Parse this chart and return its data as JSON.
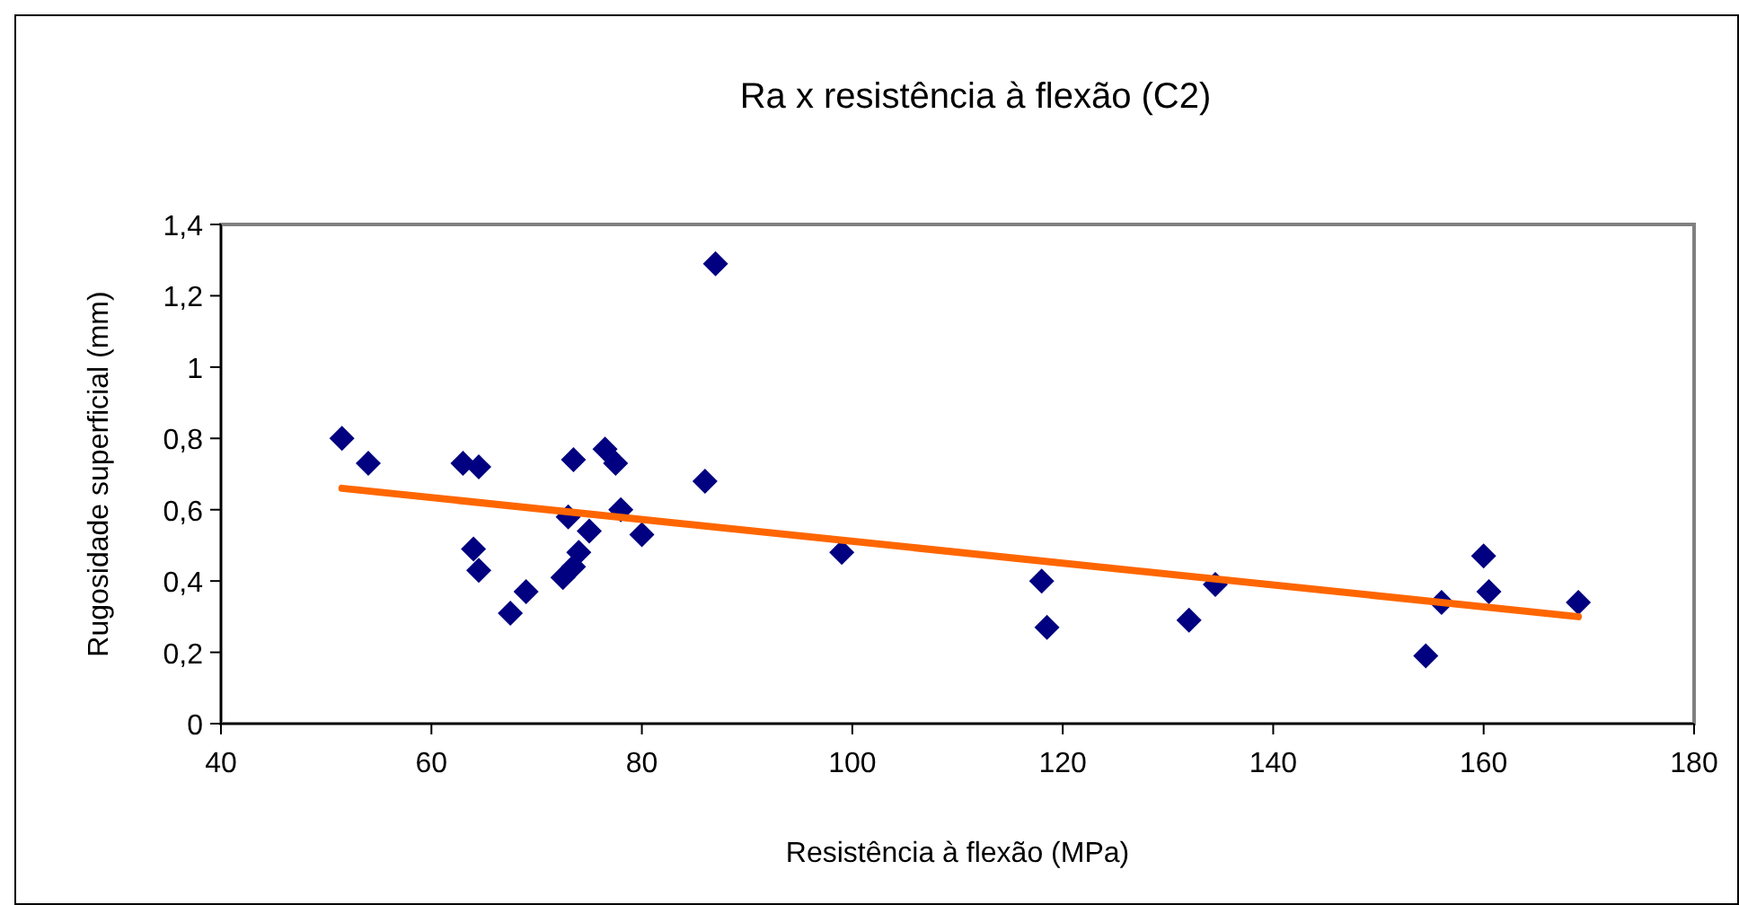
{
  "chart_data": {
    "type": "scatter",
    "title": "Ra x resistência à flexão (C2)",
    "xlabel": "Resistência à flexão (MPa)",
    "ylabel": "Rugosidade superficial (mm)",
    "xlim": [
      40,
      180
    ],
    "xticks": [
      40,
      60,
      80,
      100,
      120,
      140,
      160,
      180
    ],
    "ylim": [
      0,
      1.4
    ],
    "yticks": [
      {
        "value": 0,
        "label": "0"
      },
      {
        "value": 0.2,
        "label": "0,2"
      },
      {
        "value": 0.4,
        "label": "0,4"
      },
      {
        "value": 0.6,
        "label": "0,6"
      },
      {
        "value": 0.8,
        "label": "0,8"
      },
      {
        "value": 1,
        "label": "1"
      },
      {
        "value": 1.2,
        "label": "1,2"
      },
      {
        "value": 1.4,
        "label": "1,4"
      }
    ],
    "grid": false,
    "series": [
      {
        "color": "#000080",
        "marker": "diamond",
        "x": [
          51.5,
          54,
          63,
          64.5,
          64,
          64.5,
          67.5,
          69,
          73,
          72.5,
          73.5,
          74,
          73.5,
          75,
          76.5,
          77.5,
          78,
          80,
          86,
          87,
          99,
          118,
          118.5,
          132,
          134.5,
          154.5,
          156,
          160,
          160.5,
          169
        ],
        "values": [
          0.8,
          0.73,
          0.73,
          0.72,
          0.49,
          0.43,
          0.31,
          0.37,
          0.58,
          0.41,
          0.44,
          0.48,
          0.74,
          0.54,
          0.77,
          0.73,
          0.6,
          0.53,
          0.68,
          1.29,
          0.48,
          0.4,
          0.27,
          0.29,
          0.39,
          0.19,
          0.34,
          0.47,
          0.37,
          0.34
        ]
      },
      {
        "type": "line",
        "color": "#ff6600",
        "marker": "none",
        "x": [
          51.5,
          169
        ],
        "values": [
          0.66,
          0.3
        ]
      }
    ]
  }
}
